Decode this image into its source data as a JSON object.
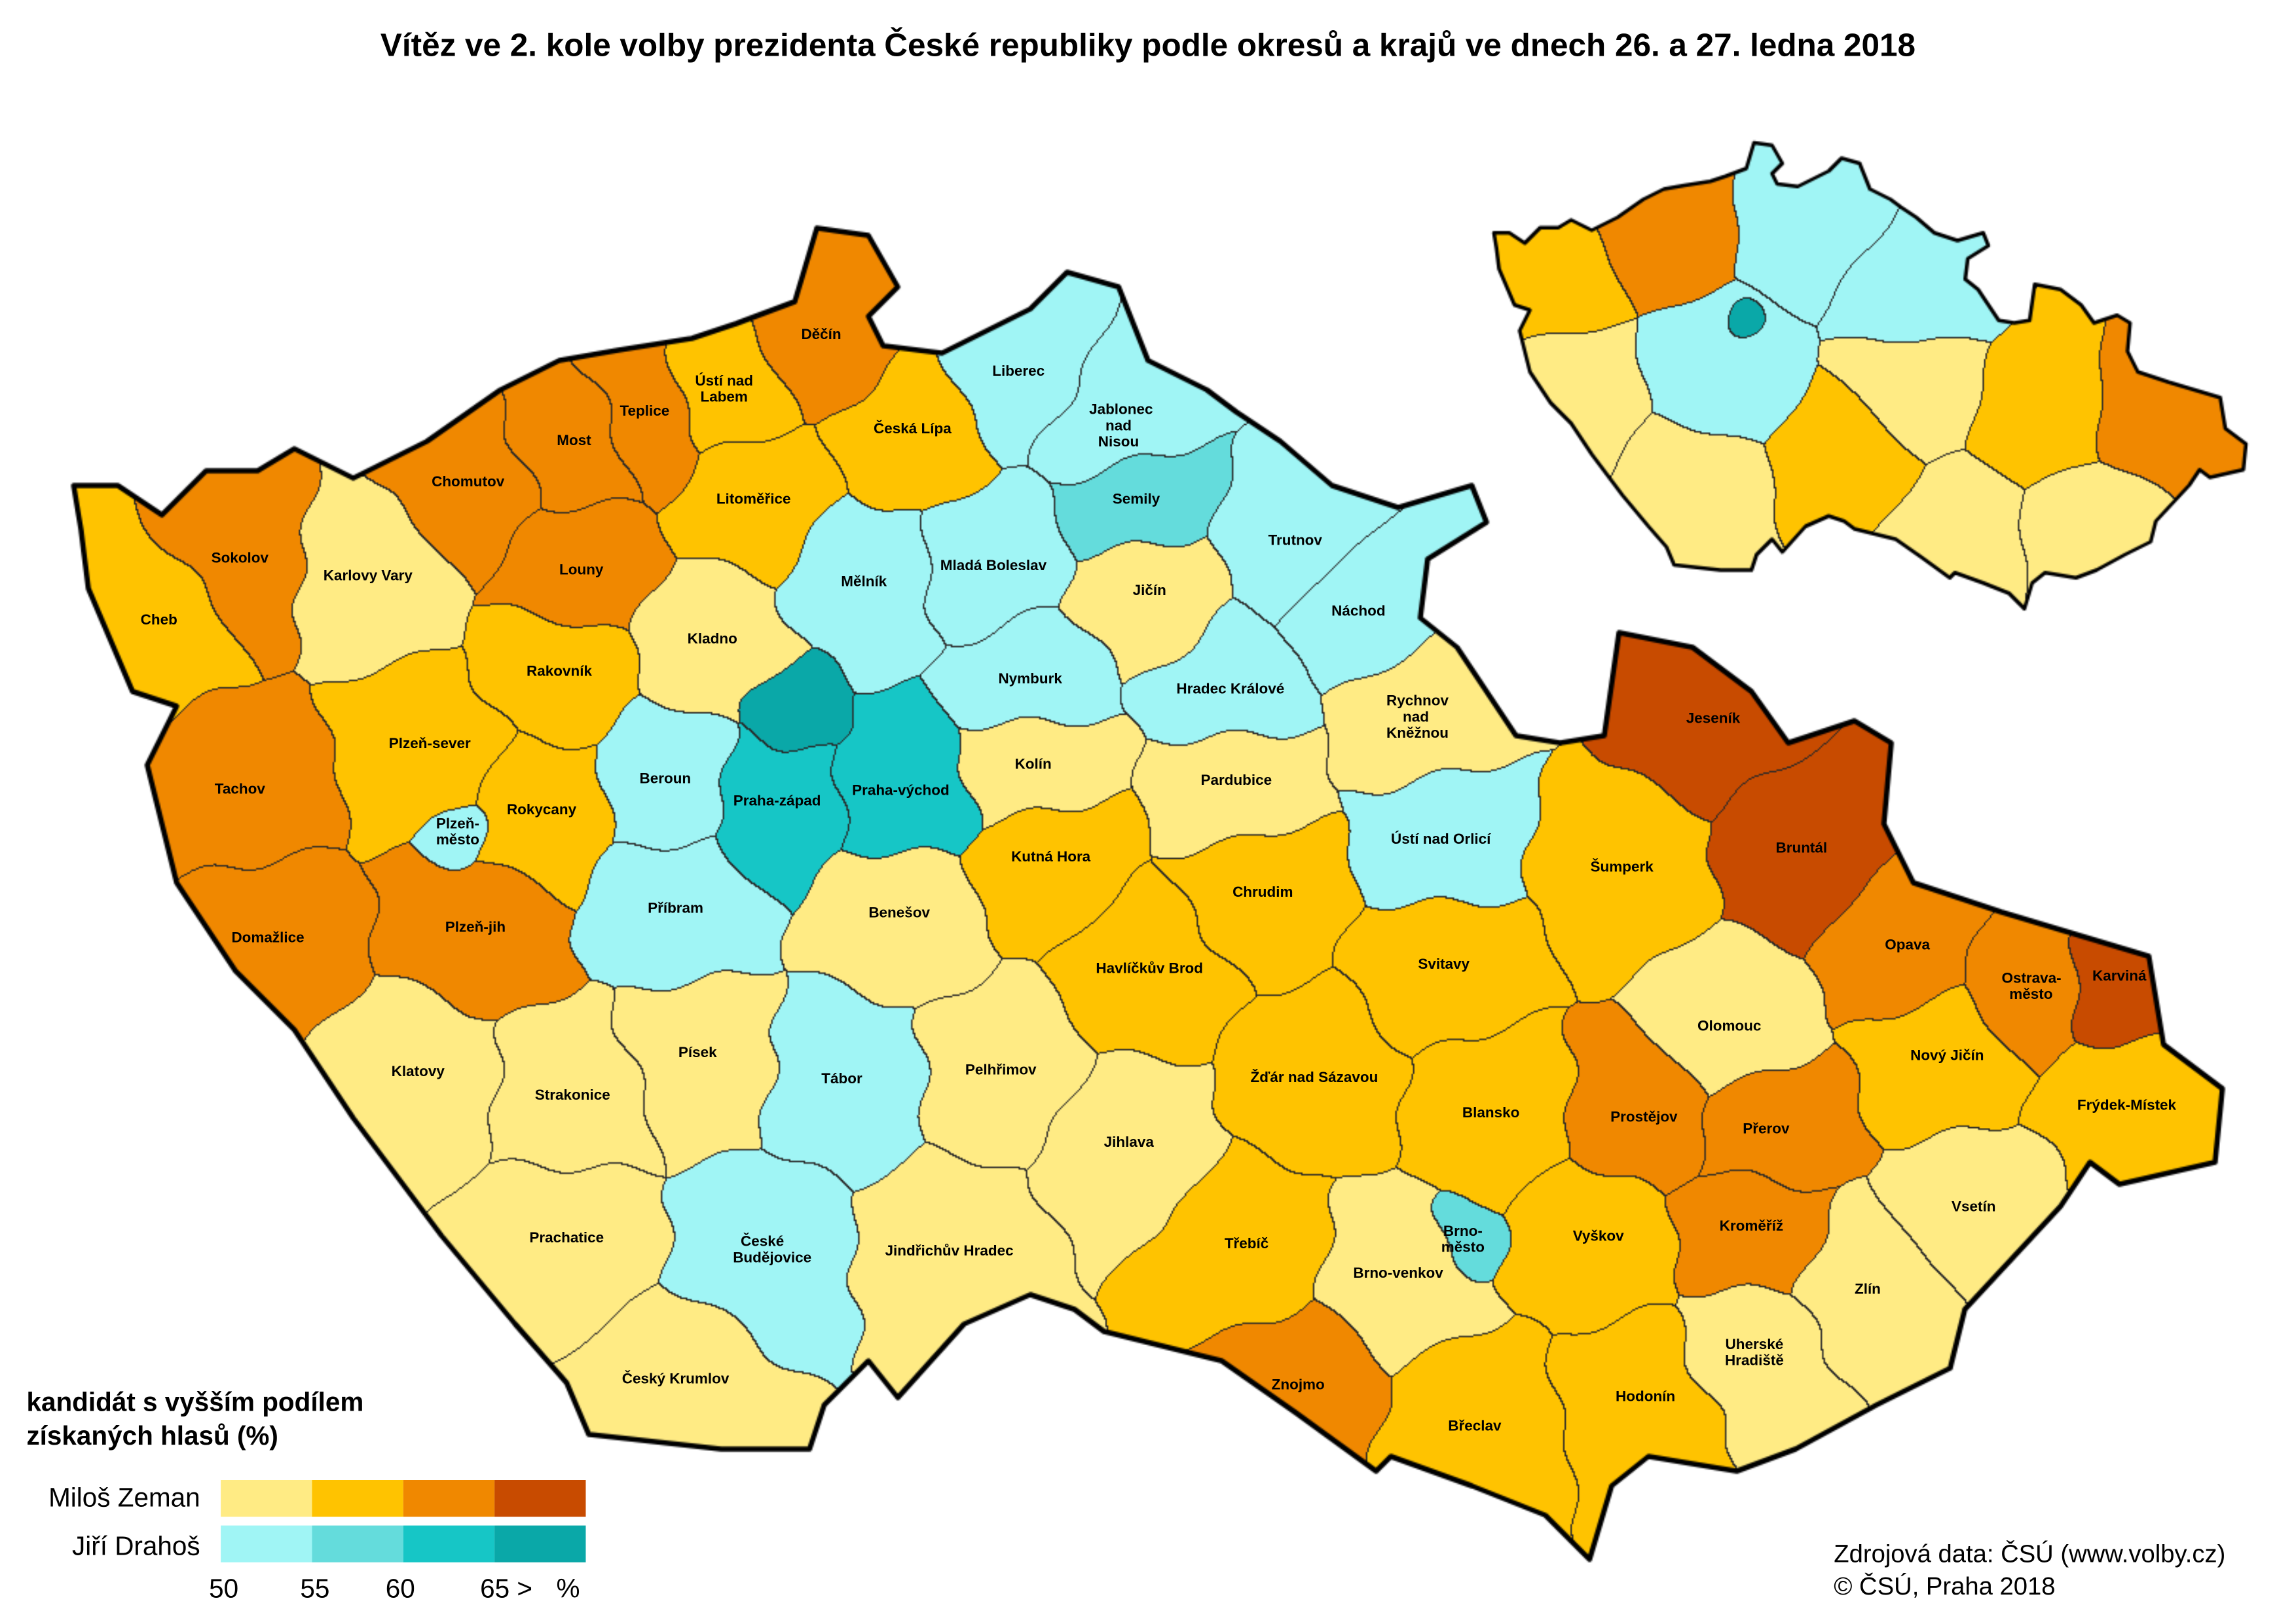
{
  "title": "Vítěz ve 2. kole volby prezidenta České republiky podle okresů a krajů ve dnech 26. a 27. ledna 2018",
  "colors": {
    "Z1": "#FFEB84",
    "Z2": "#FFC300",
    "Z3": "#F08800",
    "Z4": "#C84B00",
    "D1": "#A0F5F5",
    "D2": "#64DCDC",
    "D3": "#16C6C6",
    "D4": "#0AA8A8"
  },
  "legend": {
    "title_line1": "kandidát s vyšším podílem",
    "title_line2": "získaných hlasů (%)",
    "candidates": [
      {
        "name": "Miloš Zeman",
        "classes": [
          "Z1",
          "Z2",
          "Z3",
          "Z4"
        ]
      },
      {
        "name": "Jiří Drahoš",
        "classes": [
          "D1",
          "D2",
          "D3",
          "D4"
        ]
      }
    ],
    "ticks": [
      "50",
      "55",
      "60",
      "65 >",
      "%"
    ]
  },
  "source": {
    "line1": "Zdrojová data: ČSÚ (www.volby.cz)",
    "line2": "© ČSÚ, Praha 2018"
  },
  "districts": [
    {
      "name": "Cheb",
      "c": "Z2"
    },
    {
      "name": "Sokolov",
      "c": "Z3"
    },
    {
      "name": "Karlovy Vary",
      "c": "Z1"
    },
    {
      "name": "Chomutov",
      "c": "Z3"
    },
    {
      "name": "Most",
      "c": "Z3"
    },
    {
      "name": "Teplice",
      "c": "Z3"
    },
    {
      "name": "Ústí nad Labem",
      "c": "Z2"
    },
    {
      "name": "Děčín",
      "c": "Z3"
    },
    {
      "name": "Česká Lípa",
      "c": "Z2"
    },
    {
      "name": "Liberec",
      "c": "D1"
    },
    {
      "name": "Jablonec nad Nisou",
      "c": "D1"
    },
    {
      "name": "Semily",
      "c": "D2"
    },
    {
      "name": "Trutnov",
      "c": "D1"
    },
    {
      "name": "Náchod",
      "c": "D1"
    },
    {
      "name": "Litoměřice",
      "c": "Z2"
    },
    {
      "name": "Louny",
      "c": "Z3"
    },
    {
      "name": "Mělník",
      "c": "D1"
    },
    {
      "name": "Mladá Boleslav",
      "c": "D1"
    },
    {
      "name": "Jičín",
      "c": "Z1"
    },
    {
      "name": "Rakovník",
      "c": "Z2"
    },
    {
      "name": "Kladno",
      "c": "Z1"
    },
    {
      "name": "",
      "c": "D4"
    },
    {
      "name": "Nymburk",
      "c": "D1"
    },
    {
      "name": "Hradec Králové",
      "c": "D1"
    },
    {
      "name": "Rychnov nad Kněžnou",
      "c": "Z1"
    },
    {
      "name": "Tachov",
      "c": "Z3"
    },
    {
      "name": "Plzeň-sever",
      "c": "Z2"
    },
    {
      "name": "Rokycany",
      "c": "Z2"
    },
    {
      "name": "Plzeň-město",
      "c": "D1"
    },
    {
      "name": "Beroun",
      "c": "D1"
    },
    {
      "name": "Praha-západ",
      "c": "D3"
    },
    {
      "name": "Praha-východ",
      "c": "D3"
    },
    {
      "name": "Kolín",
      "c": "Z1"
    },
    {
      "name": "Pardubice",
      "c": "Z1"
    },
    {
      "name": "Ústí nad Orlicí",
      "c": "D1"
    },
    {
      "name": "Domažlice",
      "c": "Z3"
    },
    {
      "name": "Plzeň-jih",
      "c": "Z3"
    },
    {
      "name": "Příbram",
      "c": "D1"
    },
    {
      "name": "Benešov",
      "c": "Z1"
    },
    {
      "name": "Kutná Hora",
      "c": "Z2"
    },
    {
      "name": "Chrudim",
      "c": "Z2"
    },
    {
      "name": "Svitavy",
      "c": "Z2"
    },
    {
      "name": "Šumperk",
      "c": "Z2"
    },
    {
      "name": "Jeseník",
      "c": "Z4"
    },
    {
      "name": "Bruntál",
      "c": "Z4"
    },
    {
      "name": "Opava",
      "c": "Z3"
    },
    {
      "name": "Ostrava-město",
      "c": "Z3"
    },
    {
      "name": "Karviná",
      "c": "Z4"
    },
    {
      "name": "Klatovy",
      "c": "Z1"
    },
    {
      "name": "Strakonice",
      "c": "Z1"
    },
    {
      "name": "Písek",
      "c": "Z1"
    },
    {
      "name": "Tábor",
      "c": "D1"
    },
    {
      "name": "Pelhřimov",
      "c": "Z1"
    },
    {
      "name": "Havlíčkův Brod",
      "c": "Z2"
    },
    {
      "name": "Žďár nad Sázavou",
      "c": "Z2"
    },
    {
      "name": "Blansko",
      "c": "Z2"
    },
    {
      "name": "Olomouc",
      "c": "Z1"
    },
    {
      "name": "Prostějov",
      "c": "Z3"
    },
    {
      "name": "Přerov",
      "c": "Z3"
    },
    {
      "name": "Nový Jičín",
      "c": "Z2"
    },
    {
      "name": "Frýdek-Místek",
      "c": "Z2"
    },
    {
      "name": "Jihlava",
      "c": "Z1"
    },
    {
      "name": "Prachatice",
      "c": "Z1"
    },
    {
      "name": "České Budějovice",
      "c": "D1"
    },
    {
      "name": "Jindřichův Hradec",
      "c": "Z1"
    },
    {
      "name": "Třebíč",
      "c": "Z2"
    },
    {
      "name": "Brno-město",
      "c": "D2"
    },
    {
      "name": "Brno-venkov",
      "c": "Z1"
    },
    {
      "name": "Vyškov",
      "c": "Z2"
    },
    {
      "name": "Kroměříž",
      "c": "Z3"
    },
    {
      "name": "Vsetín",
      "c": "Z1"
    },
    {
      "name": "Zlín",
      "c": "Z1"
    },
    {
      "name": "Uherské Hradiště",
      "c": "Z1"
    },
    {
      "name": "Český Krumlov",
      "c": "Z1"
    },
    {
      "name": "Znojmo",
      "c": "Z3"
    },
    {
      "name": "Břeclav",
      "c": "Z2"
    },
    {
      "name": "Hodonín",
      "c": "Z2"
    }
  ],
  "regions": [
    "D4",
    "D1",
    "Z2",
    "Z3",
    "D1",
    "D1",
    "Z1",
    "Z1",
    "Z1",
    "Z2",
    "Z1",
    "Z2",
    "Z3",
    "Z1"
  ]
}
